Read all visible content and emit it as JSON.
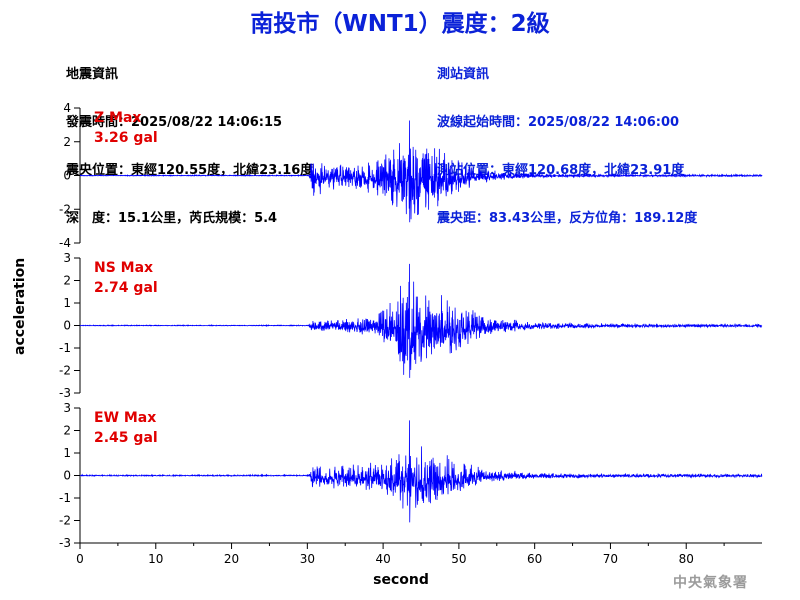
{
  "header": {
    "title": "南投市（WNT1）震度：2級"
  },
  "quake_info": {
    "heading": "地震資訊",
    "time": "發震時間：2025/08/22 14:06:15",
    "location": "震央位置：東經120.55度，北緯23.16度",
    "depth_magnitude": "深　度：15.1公里，芮氏規模：5.4"
  },
  "station_info": {
    "heading": "測站資訊",
    "start_time": "波線起始時間：2025/08/22 14:06:00",
    "location": "測站位置：東經120.68度，北緯23.91度",
    "distance": "震央距：83.43公里，反方位角：189.12度"
  },
  "footer": {
    "agency": "中央氣象署"
  },
  "chart_data": {
    "type": "line",
    "xlabel": "second",
    "ylabel": "acceleration",
    "xlim": [
      0,
      90
    ],
    "x_ticks": [
      0,
      10,
      20,
      30,
      40,
      50,
      60,
      70,
      80
    ],
    "series_color": "#0000ff",
    "max_label_color": "#e00000",
    "series": [
      {
        "name": "Z",
        "max_title": "Z Max",
        "max_value": "3.26 gal",
        "peak": 3.26,
        "ylim": [
          -4,
          4
        ],
        "y_ticks": [
          -4,
          -2,
          0,
          2,
          4
        ],
        "envelope": [
          [
            0,
            0.03
          ],
          [
            30.2,
            0.03
          ],
          [
            30.6,
            1.6
          ],
          [
            31.5,
            1.2
          ],
          [
            33,
            0.9
          ],
          [
            35,
            0.7
          ],
          [
            37,
            0.9
          ],
          [
            39,
            1.3
          ],
          [
            41,
            1.8
          ],
          [
            43,
            2.5
          ],
          [
            44,
            3.0
          ],
          [
            45,
            2.6
          ],
          [
            46,
            2.3
          ],
          [
            48,
            1.8
          ],
          [
            50,
            1.1
          ],
          [
            52,
            0.6
          ],
          [
            55,
            0.3
          ],
          [
            60,
            0.15
          ],
          [
            70,
            0.08
          ],
          [
            90,
            0.06
          ]
        ]
      },
      {
        "name": "NS",
        "max_title": "NS Max",
        "max_value": "2.74 gal",
        "peak": 2.74,
        "ylim": [
          -3,
          3
        ],
        "y_ticks": [
          -3,
          -2,
          -1,
          0,
          1,
          2,
          3
        ],
        "envelope": [
          [
            0,
            0.02
          ],
          [
            30.2,
            0.02
          ],
          [
            30.6,
            0.3
          ],
          [
            33,
            0.3
          ],
          [
            36,
            0.35
          ],
          [
            39,
            0.5
          ],
          [
            40.5,
            1.0
          ],
          [
            42,
            1.8
          ],
          [
            43,
            2.4
          ],
          [
            44,
            2.2
          ],
          [
            46,
            1.6
          ],
          [
            48,
            1.5
          ],
          [
            50,
            1.2
          ],
          [
            52,
            0.7
          ],
          [
            55,
            0.4
          ],
          [
            60,
            0.2
          ],
          [
            70,
            0.1
          ],
          [
            90,
            0.08
          ]
        ]
      },
      {
        "name": "EW",
        "max_title": "EW Max",
        "max_value": "2.45 gal",
        "peak": 2.45,
        "ylim": [
          -3,
          3
        ],
        "y_ticks": [
          -3,
          -2,
          -1,
          0,
          1,
          2,
          3
        ],
        "envelope": [
          [
            0,
            0.03
          ],
          [
            30.2,
            0.03
          ],
          [
            30.6,
            0.7
          ],
          [
            33,
            0.6
          ],
          [
            36,
            0.6
          ],
          [
            39,
            0.8
          ],
          [
            41,
            1.0
          ],
          [
            43,
            1.8
          ],
          [
            44,
            1.7
          ],
          [
            46,
            1.4
          ],
          [
            48,
            1.1
          ],
          [
            50,
            0.9
          ],
          [
            52,
            0.5
          ],
          [
            55,
            0.3
          ],
          [
            60,
            0.15
          ],
          [
            70,
            0.1
          ],
          [
            90,
            0.08
          ]
        ]
      }
    ]
  }
}
